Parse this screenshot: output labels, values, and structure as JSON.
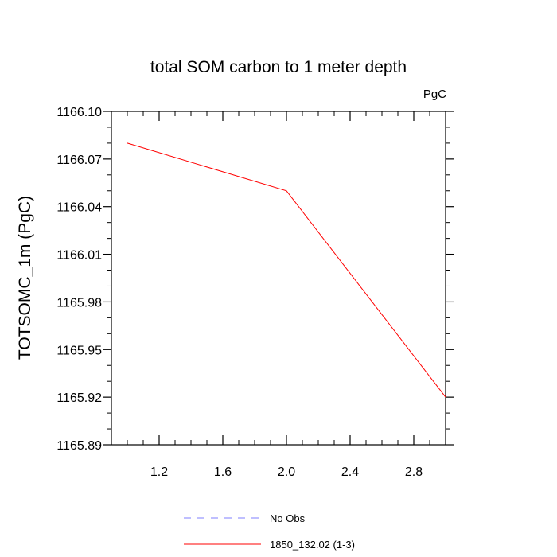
{
  "chart_data": {
    "type": "line",
    "title": "total SOM carbon to 1 meter depth",
    "units_label": "PgC",
    "ylabel": "TOTSOMC_1m  (PgC)",
    "xlabel": "",
    "xlim": [
      0.9,
      3.0
    ],
    "ylim": [
      1165.89,
      1166.1
    ],
    "x_ticks": [
      1.2,
      1.6,
      2.0,
      2.4,
      2.8
    ],
    "x_tick_labels": [
      "1.2",
      "1.6",
      "2.0",
      "2.4",
      "2.8"
    ],
    "y_ticks": [
      1165.89,
      1165.92,
      1165.95,
      1165.98,
      1166.01,
      1166.04,
      1166.07,
      1166.1
    ],
    "y_tick_labels": [
      "1165.89",
      "1165.92",
      "1165.95",
      "1165.98",
      "1166.01",
      "1166.04",
      "1166.07",
      "1166.10"
    ],
    "grid": false,
    "legend_position": "bottom",
    "series": [
      {
        "name": "1850_132.02 (1-3)",
        "color": "#ff0000",
        "dash": "solid",
        "x": [
          1,
          2,
          3
        ],
        "y": [
          1166.08,
          1166.05,
          1165.92
        ]
      }
    ],
    "legend": [
      {
        "label": "No Obs",
        "color": "#7f7fff",
        "dash": "dashed"
      },
      {
        "label": "1850_132.02 (1-3)",
        "color": "#ff0000",
        "dash": "solid"
      }
    ]
  }
}
